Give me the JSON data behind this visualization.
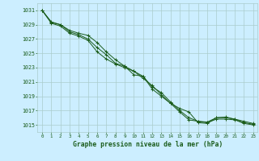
{
  "bg_color": "#cceeff",
  "grid_color": "#aacccc",
  "line_color": "#1a5c1a",
  "title": "Graphe pression niveau de la mer (hPa)",
  "title_color": "#1a5c1a",
  "xlim": [
    -0.5,
    23.5
  ],
  "ylim": [
    1014.0,
    1032.0
  ],
  "yticks": [
    1015,
    1017,
    1019,
    1021,
    1023,
    1025,
    1027,
    1029,
    1031
  ],
  "xticks": [
    0,
    1,
    2,
    3,
    4,
    5,
    6,
    7,
    8,
    9,
    10,
    11,
    12,
    13,
    14,
    15,
    16,
    17,
    18,
    19,
    20,
    21,
    22,
    23
  ],
  "series": [
    [
      1031.0,
      1029.4,
      1029.0,
      1028.2,
      1027.8,
      1027.5,
      1026.5,
      1025.2,
      1024.1,
      1023.2,
      1022.5,
      1021.5,
      1020.5,
      1019.2,
      1018.0,
      1017.3,
      1016.8,
      1015.3,
      1015.2,
      1016.0,
      1016.0,
      1015.8,
      1015.5,
      1015.2
    ],
    [
      1031.0,
      1029.3,
      1029.0,
      1028.0,
      1027.6,
      1027.0,
      1025.8,
      1024.8,
      1023.6,
      1023.2,
      1022.0,
      1021.8,
      1020.3,
      1019.5,
      1018.2,
      1017.0,
      1016.0,
      1015.5,
      1015.4,
      1016.0,
      1016.1,
      1015.8,
      1015.3,
      1015.1
    ],
    [
      1031.0,
      1029.2,
      1028.8,
      1027.8,
      1027.4,
      1026.8,
      1025.2,
      1024.2,
      1023.5,
      1023.0,
      1022.5,
      1021.8,
      1020.0,
      1019.0,
      1018.0,
      1016.8,
      1015.7,
      1015.5,
      1015.3,
      1015.8,
      1015.8,
      1015.7,
      1015.2,
      1015.0
    ]
  ]
}
